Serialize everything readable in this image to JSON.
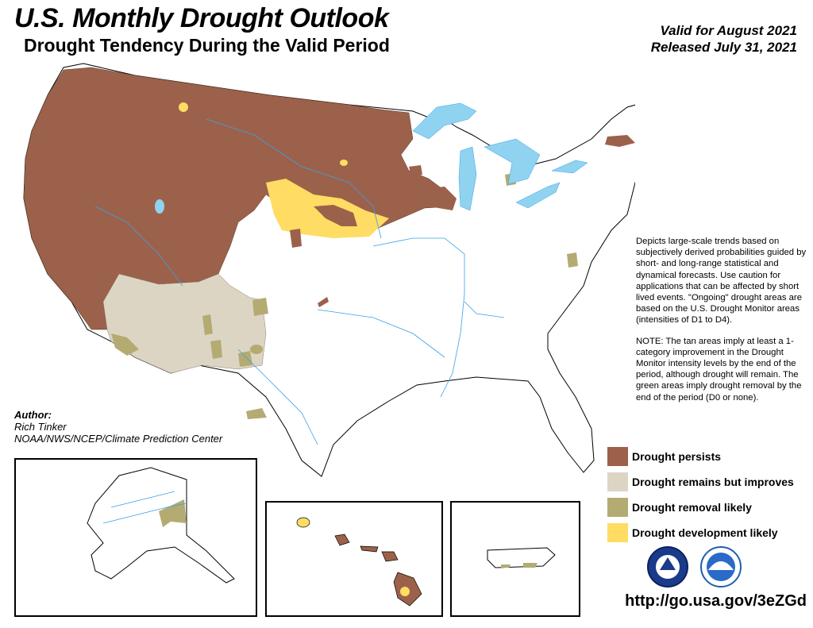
{
  "header": {
    "title": "U.S. Monthly Drought Outlook",
    "subtitle": "Drought Tendency During the Valid Period",
    "valid_line": "Valid for August 2021",
    "released_line": "Released July 31, 2021"
  },
  "description": {
    "para1": "Depicts large-scale trends based on subjectively derived probabilities guided by short- and long-range statistical and dynamical forecasts. Use caution for applications that can be affected by short lived events. \"Ongoing\" drought areas are based on the U.S. Drought Monitor areas (intensities of D1 to D4).",
    "para2": "NOTE: The tan areas imply at least a 1-category improvement in the Drought Monitor intensity levels by the end of the period, although drought will remain. The green areas imply drought removal by the end of the period (D0 or none)."
  },
  "author": {
    "heading": "Author:",
    "name": "Rich Tinker",
    "org": "NOAA/NWS/NCEP/Climate Prediction Center"
  },
  "legend": [
    {
      "label": "Drought persists",
      "color": "#9c614a"
    },
    {
      "label": "Drought remains but improves",
      "color": "#ddd5c4"
    },
    {
      "label": "Drought removal likely",
      "color": "#b3ab72"
    },
    {
      "label": "Drought development likely",
      "color": "#ffdc63"
    }
  ],
  "url": "http://go.usa.gov/3eZGd",
  "colors": {
    "water": "#8fd3f0",
    "rivers": "#3aa0e6",
    "lakes_major": "#8fd3f0"
  },
  "logos": [
    "nws-logo-icon",
    "noaa-logo-icon"
  ]
}
